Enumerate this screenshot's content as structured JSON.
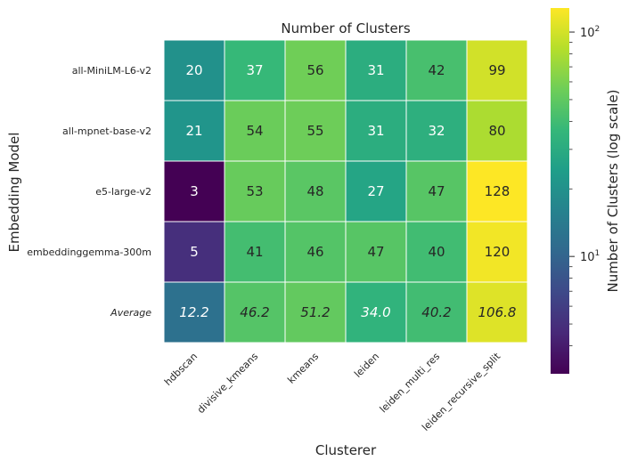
{
  "chart_data": {
    "type": "heatmap",
    "title": "Number of Clusters",
    "xlabel": "Clusterer",
    "ylabel": "Embedding Model",
    "columns": [
      "hdbscan",
      "divisive_kmeans",
      "kmeans",
      "leiden",
      "leiden_multi_res",
      "leiden_recursive_split"
    ],
    "rows": [
      "all-MiniLM-L6-v2",
      "all-mpnet-base-v2",
      "e5-large-v2",
      "embeddinggemma-300m",
      "Average"
    ],
    "values": [
      [
        20,
        37,
        56,
        31,
        42,
        99
      ],
      [
        21,
        54,
        55,
        31,
        32,
        80
      ],
      [
        3,
        53,
        48,
        27,
        47,
        128
      ],
      [
        5,
        41,
        46,
        47,
        40,
        120
      ],
      [
        12.2,
        46.2,
        51.2,
        34.0,
        40.2,
        106.8
      ]
    ],
    "labels": [
      [
        "20",
        "37",
        "56",
        "31",
        "42",
        "99"
      ],
      [
        "21",
        "54",
        "55",
        "31",
        "32",
        "80"
      ],
      [
        "3",
        "53",
        "48",
        "27",
        "47",
        "128"
      ],
      [
        "5",
        "41",
        "46",
        "47",
        "40",
        "120"
      ],
      [
        "12.2",
        "46.2",
        "51.2",
        "34.0",
        "40.2",
        "106.8"
      ]
    ],
    "colorbar": {
      "label": "Number of Clusters (log scale)",
      "scale": "log",
      "colormap": "viridis",
      "range": [
        3,
        128
      ],
      "major_ticks": [
        {
          "value": 10,
          "base": "10",
          "exp": "1"
        },
        {
          "value": 100,
          "base": "10",
          "exp": "2"
        }
      ],
      "minor_ticks": [
        4,
        5,
        6,
        7,
        8,
        9,
        20,
        30,
        40,
        50,
        60,
        70,
        80,
        90
      ]
    },
    "italic_rows": [
      "Average"
    ]
  }
}
